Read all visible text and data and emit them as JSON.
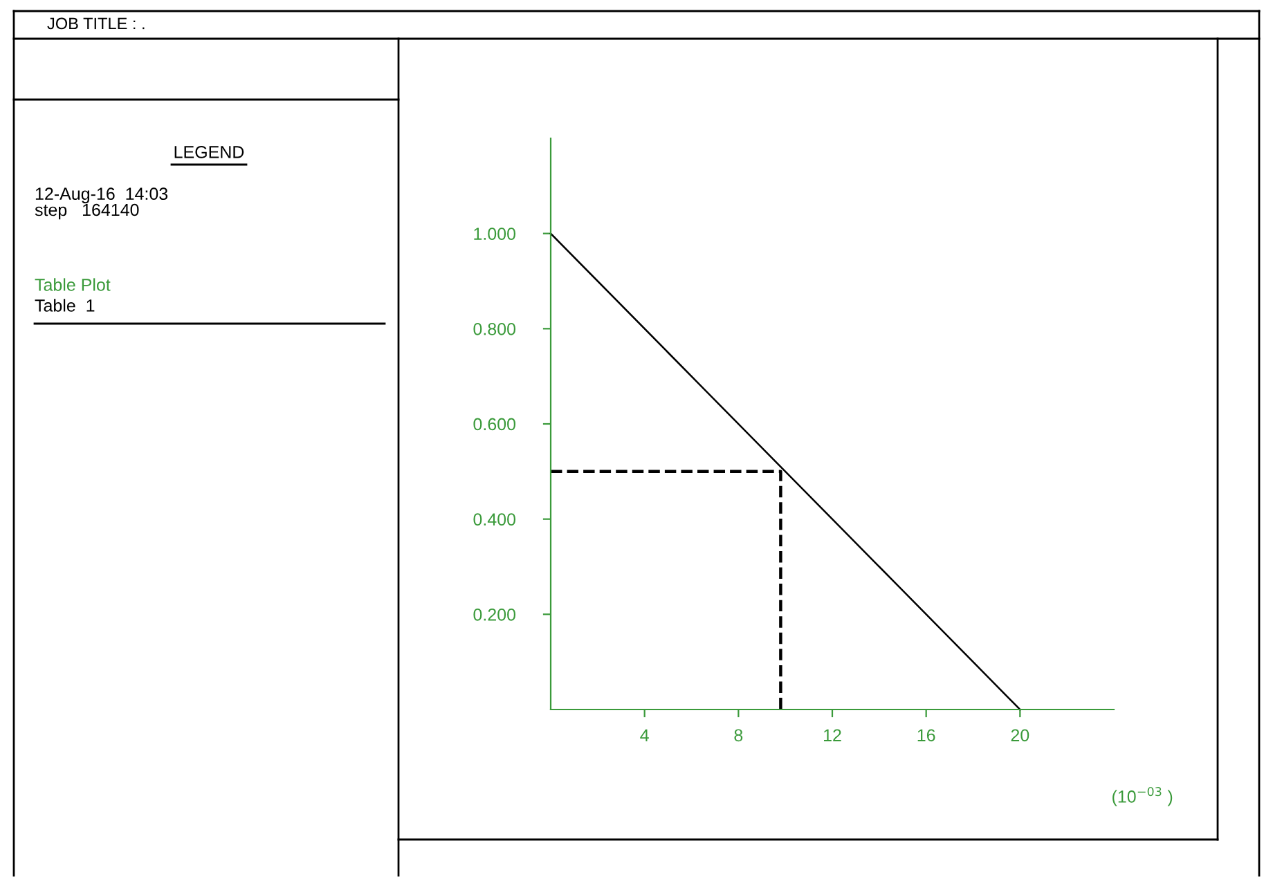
{
  "chart_data": {
    "type": "line",
    "title": "JOB TITLE : .",
    "xlabel": "(10$^{−03}$ )",
    "annotations": [
      "LEGEND",
      "12-Aug-16  14:03\nstep   164140",
      "Table Plot",
      "Table  1"
    ],
    "series": [
      {
        "color": "#000000",
        "x": [
          0,
          5,
          10,
          15,
          18,
          19,
          19.5,
          20
        ],
        "values": [
          1.0,
          0.75,
          0.5,
          0.25,
          0.1,
          0.05,
          0.025,
          0.0
        ],
        "line_style": "solid"
      },
      {
        "color": "#000000",
        "x": [
          0,
          9.8,
          9.8
        ],
        "values": [
          0.5,
          0.5,
          0.0
        ],
        "line_style": "dashed"
      }
    ],
    "xlim": [
      0,
      24
    ],
    "ylim": [
      0,
      1.2
    ],
    "xticks": [
      4,
      8,
      12,
      16,
      20
    ],
    "yticks": [
      {
        "value": 0.2,
        "label": "0.200"
      },
      {
        "value": 0.4,
        "label": "0.400"
      },
      {
        "value": 0.6,
        "label": "0.600"
      },
      {
        "value": 0.8,
        "label": "0.800"
      },
      {
        "value": 1.0,
        "label": "1.000"
      }
    ],
    "grid": false,
    "legend": false
  }
}
